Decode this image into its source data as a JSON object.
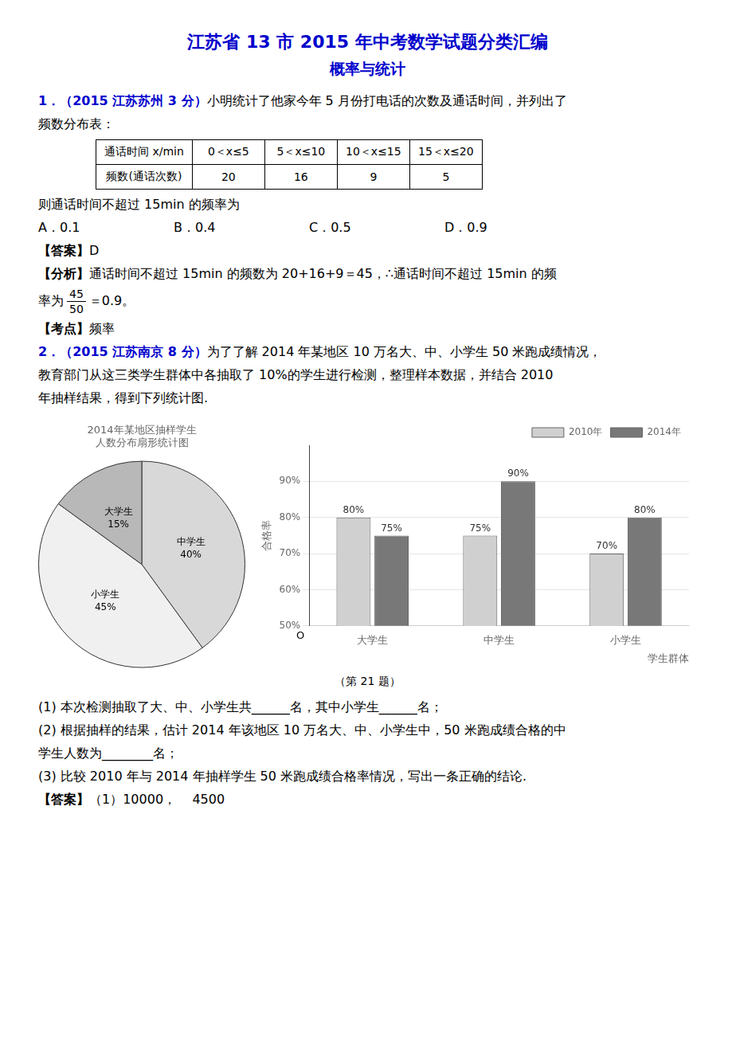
{
  "title": "江苏省 13 市 2015 年中考数学试题分类汇编",
  "subtitle": "概率与统计",
  "color": "#0000CC",
  "text_before": [
    {
      "label": "1．（2015 江苏苏州 3 分）",
      "color": "#0000CC",
      "text": "小明统计了他家今年 5 月份打电话的次数及通话时间，并列出了"
    },
    {
      "text": "频数分布表："
    },
    {
      "table": {
        "columns": [
          "通话时间 x/min",
          "0＜x≤5",
          "5＜x≤10",
          "10＜x≤15",
          "15＜x≤20"
        ],
        "rows": [
          [
            "频数(通话次数)",
            20,
            16,
            9,
            5
          ]
        ]
      }
    },
    {
      "text": "则通话时间不超过 15min 的频率为"
    },
    {
      "choices": [
        "A．0.1",
        "B．0.4",
        "C．0.5",
        "D．0.9"
      ]
    },
    {
      "label": "【答案】",
      "text": "D"
    },
    {
      "label": "【分析】",
      "text": "通话时间不超过 15min 的频数为 20+16+9＝45，∴通话时间不超过 15min 的频"
    },
    {
      "text": "率为",
      "fraction": [
        "45",
        "50"
      ],
      "after": "＝0.9。"
    },
    {
      "label": "【考点】",
      "text": "频率"
    },
    {
      "label": "2．（2015 江苏南京 8 分）",
      "color": "#0000CC",
      "text": "为了了解 2014 年某地区 10 万名大、中、小学生 50 米跑成绩情况，"
    },
    {
      "text": "教育部门从这三类学生群体中各抽取了 10%的学生进行检测，整理样本数据，并结合 2010"
    },
    {
      "text": "年抽样结果，得到下列统计图."
    }
  ],
  "chart_data": [
    {
      "type": "pie",
      "title": [
        "2014年某地区抽样学生",
        "人数分布扇形统计图"
      ],
      "categories": [
        "中学生",
        "小学生",
        "大学生"
      ],
      "values": [
        40,
        45,
        15
      ],
      "value_labels": [
        "40%",
        "45%",
        "15%"
      ],
      "colors": [
        "#d8d8d8",
        "#f0f0f0",
        "#b8b8b8"
      ],
      "data_labels": true
    },
    {
      "type": "bar",
      "x_label": "学生群体",
      "y_label": "合格率",
      "annotations": [
        "O"
      ],
      "categories": [
        "大学生",
        "中学生",
        "小学生"
      ],
      "series": [
        {
          "name": "2010年",
          "color": "#d0d0d0",
          "values": [
            80,
            75,
            70
          ],
          "value_labels": [
            "80%",
            "75%",
            "70%"
          ]
        },
        {
          "name": "2014年",
          "color": "#787878",
          "values": [
            75,
            90,
            80
          ],
          "value_labels": [
            "75%",
            "90%",
            "80%"
          ]
        }
      ],
      "ylim": [
        50,
        100
      ],
      "yticks": [
        {
          "value": 50,
          "label": "50%"
        },
        {
          "value": 60,
          "label": "60%"
        },
        {
          "value": 70,
          "label": "70%"
        },
        {
          "value": 80,
          "label": "80%"
        },
        {
          "value": 90,
          "label": "90%"
        }
      ],
      "grid": true,
      "legend": "upper right",
      "data_labels": true
    }
  ],
  "caption": "（第 21 题）",
  "text_after": [
    {
      "text": "(1) 本次检测抽取了大、中、小学生共______名，其中小学生______名；"
    },
    {
      "text": "(2) 根据抽样的结果，估计 2014 年该地区 10 万名大、中、小学生中，50 米跑成绩合格的中"
    },
    {
      "text": "学生人数为________名；"
    },
    {
      "text": "(3) 比较 2010 年与 2014 年抽样学生 50 米跑成绩合格率情况，写出一条正确的结论."
    },
    {
      "label": "【答案】",
      "text": "（1）10000，    4500"
    }
  ]
}
